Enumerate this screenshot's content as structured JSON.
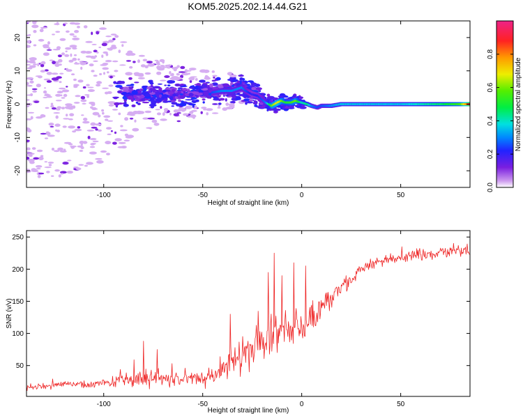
{
  "title": "KOM5.2025.202.14.44.G21",
  "colors": {
    "snr_line": "#ee2222",
    "spectrogram_low": "#cc99ee",
    "spectrogram_mid": "#7a1fe0",
    "spectrogram_high": "#00c8e6"
  },
  "chart_data": [
    {
      "type": "heatmap",
      "name": "spectrogram",
      "title": "KOM5.2025.202.14.44.G21",
      "xlabel": "Height of straight line (km)",
      "ylabel": "Frequency (Hz)",
      "xlim": [
        -139,
        85
      ],
      "ylim": [
        -25,
        25
      ],
      "xticks": [
        -100,
        -50,
        0,
        50
      ],
      "yticks": [
        -20,
        -10,
        0,
        10,
        20
      ],
      "grid": false,
      "colorbar": {
        "label": "Normalized spectral amplitude",
        "range": [
          0,
          1
        ],
        "ticks": [
          "0.0",
          "0.2",
          "0.4",
          "0.6",
          "0.8"
        ],
        "colormap": "rainbow (purple-blue-cyan-green-yellow-red-magenta)"
      },
      "ridge": {
        "x": [
          -80,
          -70,
          -60,
          -50,
          -45,
          -40,
          -35,
          -30,
          -28,
          -25,
          -22,
          -20,
          -18,
          -15,
          -12,
          -10,
          -8,
          -5,
          -3,
          0,
          3,
          5,
          8,
          10,
          15,
          20,
          30,
          40,
          50,
          60,
          70,
          80,
          85
        ],
        "freq": [
          3,
          3,
          3,
          3.5,
          3.5,
          4,
          4,
          5,
          4,
          3,
          2.5,
          1.5,
          0.5,
          -0.5,
          0.5,
          1,
          0.5,
          0.5,
          1,
          0.5,
          0,
          -0.5,
          -1,
          -0.5,
          -0.5,
          0,
          0,
          0,
          0,
          0,
          0,
          0,
          0
        ],
        "amplitude": [
          0.1,
          0.1,
          0.15,
          0.2,
          0.25,
          0.3,
          0.3,
          0.3,
          0.25,
          0.2,
          0.22,
          0.25,
          0.3,
          0.6,
          0.7,
          0.6,
          0.5,
          0.55,
          0.6,
          0.4,
          0.45,
          0.3,
          0.25,
          0.25,
          0.3,
          0.35,
          0.35,
          0.35,
          0.35,
          0.4,
          0.45,
          0.55,
          0.9
        ]
      },
      "scatter_spread_hz": {
        "x": [
          -139,
          -120,
          -100,
          -80,
          -60,
          -40,
          -20,
          0
        ],
        "spread": [
          25,
          25,
          20,
          12,
          8,
          6,
          3,
          1.5
        ]
      }
    },
    {
      "type": "line",
      "name": "snr",
      "xlabel": "Height of straight line (km)",
      "ylabel": "SNR (v/v)",
      "xlim": [
        -139,
        85
      ],
      "ylim": [
        2,
        260
      ],
      "xticks": [
        -100,
        -50,
        0,
        50
      ],
      "yticks": [
        50,
        100,
        150,
        200,
        250
      ],
      "grid": false,
      "series": [
        {
          "x": [
            -139,
            -130,
            -120,
            -110,
            -100,
            -90,
            -80,
            -70,
            -60,
            -50,
            -45,
            -40,
            -35,
            -30,
            -25,
            -20,
            -15,
            -10,
            -5,
            0,
            5,
            10,
            15,
            20,
            25,
            30,
            35,
            40,
            45,
            50,
            55,
            60,
            65,
            70,
            75,
            80,
            85
          ],
          "values": [
            15,
            18,
            20,
            20,
            22,
            26,
            28,
            30,
            28,
            30,
            35,
            42,
            55,
            65,
            72,
            85,
            95,
            100,
            105,
            112,
            125,
            140,
            155,
            170,
            182,
            200,
            208,
            212,
            215,
            218,
            220,
            222,
            224,
            225,
            227,
            228,
            230
          ],
          "noise_amplitude": [
            8,
            8,
            9,
            10,
            12,
            18,
            25,
            22,
            18,
            18,
            25,
            35,
            45,
            50,
            55,
            60,
            55,
            50,
            45,
            40,
            35,
            30,
            28,
            25,
            22,
            18,
            16,
            15,
            14,
            14,
            14,
            14,
            14,
            14,
            14,
            14,
            14
          ],
          "spikes": [
            {
              "x": -80,
              "value": 88
            },
            {
              "x": -73,
              "value": 75
            },
            {
              "x": -36,
              "value": 130
            },
            {
              "x": -17,
              "value": 195
            },
            {
              "x": -14,
              "value": 225
            },
            {
              "x": -10,
              "value": 190
            },
            {
              "x": -4,
              "value": 210
            },
            {
              "x": 2,
              "value": 205
            }
          ]
        }
      ]
    }
  ]
}
